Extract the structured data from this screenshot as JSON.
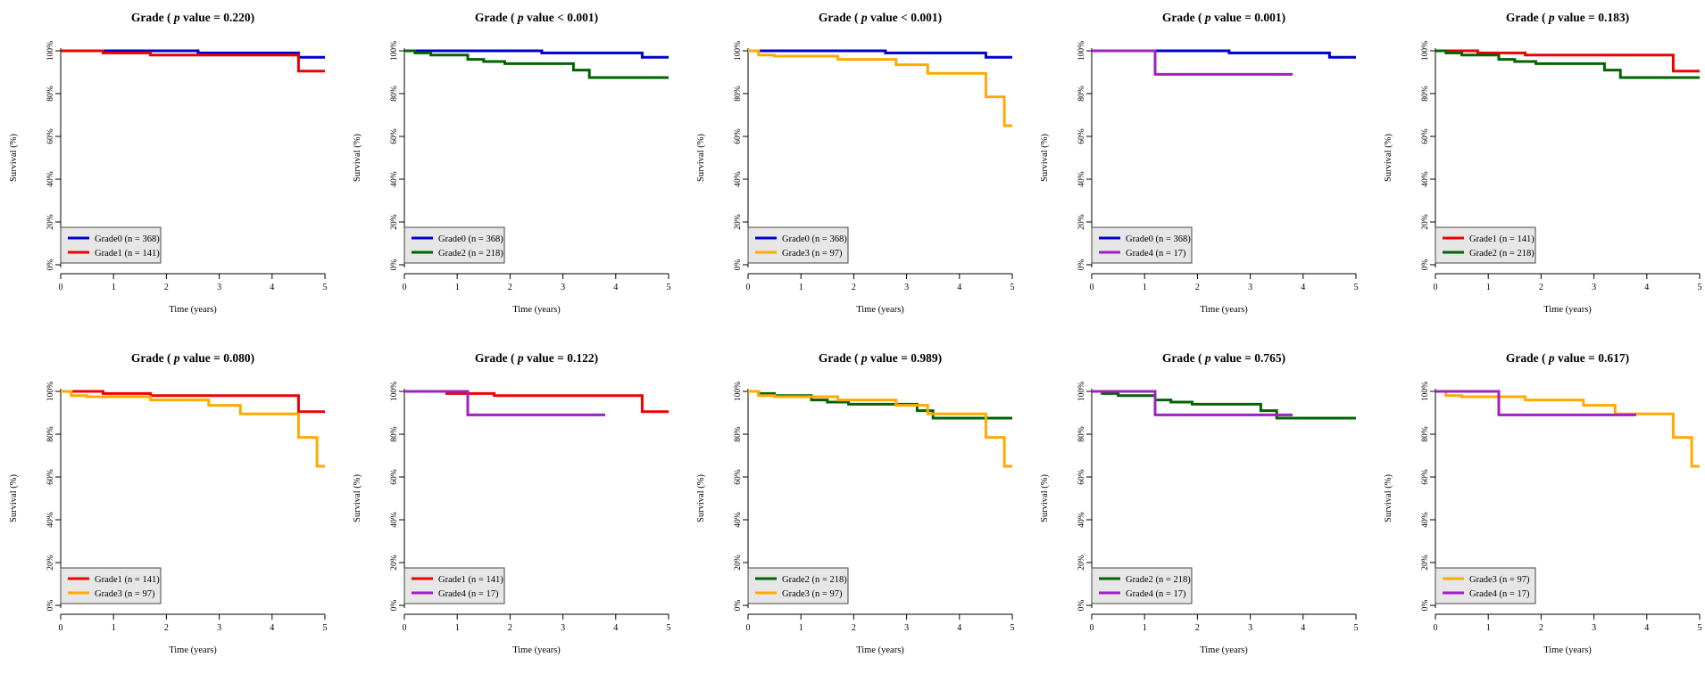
{
  "colors": {
    "Grade0": "#0000cc",
    "Grade1": "#ee0000",
    "Grade2": "#006400",
    "Grade3": "#ffaa00",
    "Grade4": "#a020c0"
  },
  "curves": {
    "Grade0": [
      [
        0,
        100
      ],
      [
        2.6,
        100
      ],
      [
        2.6,
        99
      ],
      [
        4.5,
        99
      ],
      [
        4.5,
        97
      ],
      [
        5,
        97
      ]
    ],
    "Grade1": [
      [
        0,
        100
      ],
      [
        0.8,
        100
      ],
      [
        0.8,
        99
      ],
      [
        1.7,
        99
      ],
      [
        1.7,
        98
      ],
      [
        4.5,
        98
      ],
      [
        4.5,
        90.5
      ],
      [
        5,
        90.5
      ]
    ],
    "Grade2": [
      [
        0,
        100
      ],
      [
        0.2,
        100
      ],
      [
        0.2,
        99
      ],
      [
        0.5,
        99
      ],
      [
        0.5,
        98
      ],
      [
        1.2,
        98
      ],
      [
        1.2,
        96
      ],
      [
        1.5,
        96
      ],
      [
        1.5,
        95
      ],
      [
        1.9,
        95
      ],
      [
        1.9,
        94
      ],
      [
        3.2,
        94
      ],
      [
        3.2,
        91
      ],
      [
        3.5,
        91
      ],
      [
        3.5,
        87.5
      ],
      [
        5,
        87.5
      ]
    ],
    "Grade3": [
      [
        0,
        100
      ],
      [
        0.2,
        100
      ],
      [
        0.2,
        98
      ],
      [
        0.5,
        98
      ],
      [
        0.5,
        97.5
      ],
      [
        1.7,
        97.5
      ],
      [
        1.7,
        96
      ],
      [
        2.8,
        96
      ],
      [
        2.8,
        93.5
      ],
      [
        3.4,
        93.5
      ],
      [
        3.4,
        89.5
      ],
      [
        4.5,
        89.5
      ],
      [
        4.5,
        78.5
      ],
      [
        4.85,
        78.5
      ],
      [
        4.85,
        65
      ],
      [
        5,
        65
      ]
    ],
    "Grade4": [
      [
        0,
        100
      ],
      [
        1.2,
        100
      ],
      [
        1.2,
        89
      ],
      [
        3.8,
        89
      ]
    ]
  },
  "chart_data": [
    {
      "type": "line",
      "title_prefix": "Grade ( ",
      "title_p": "p",
      "title_suffix": " value = 0.220)",
      "xlabel": "Time (years)",
      "ylabel": "Survival (%)",
      "xlim": [
        0,
        5
      ],
      "ylim": [
        0,
        100
      ],
      "xticks": [
        "0",
        "1",
        "2",
        "3",
        "4",
        "5"
      ],
      "yticks": [
        "0%",
        "20%",
        "40%",
        "60%",
        "80%",
        "100%"
      ],
      "legend_position": "bottom-left",
      "series": [
        {
          "name": "Grade0 (n = 368)",
          "group": "Grade0"
        },
        {
          "name": "Grade1 (n = 141)",
          "group": "Grade1"
        }
      ]
    },
    {
      "type": "line",
      "title_prefix": "Grade ( ",
      "title_p": "p",
      "title_suffix": " value < 0.001)",
      "xlabel": "Time (years)",
      "ylabel": "Survival (%)",
      "xlim": [
        0,
        5
      ],
      "ylim": [
        0,
        100
      ],
      "xticks": [
        "0",
        "1",
        "2",
        "3",
        "4",
        "5"
      ],
      "yticks": [
        "0%",
        "20%",
        "40%",
        "60%",
        "80%",
        "100%"
      ],
      "legend_position": "bottom-left",
      "series": [
        {
          "name": "Grade0 (n = 368)",
          "group": "Grade0"
        },
        {
          "name": "Grade2 (n = 218)",
          "group": "Grade2"
        }
      ]
    },
    {
      "type": "line",
      "title_prefix": "Grade ( ",
      "title_p": "p",
      "title_suffix": " value < 0.001)",
      "xlabel": "Time (years)",
      "ylabel": "Survival (%)",
      "xlim": [
        0,
        5
      ],
      "ylim": [
        0,
        100
      ],
      "xticks": [
        "0",
        "1",
        "2",
        "3",
        "4",
        "5"
      ],
      "yticks": [
        "0%",
        "20%",
        "40%",
        "60%",
        "80%",
        "100%"
      ],
      "legend_position": "bottom-left",
      "series": [
        {
          "name": "Grade0 (n = 368)",
          "group": "Grade0"
        },
        {
          "name": "Grade3 (n = 97)",
          "group": "Grade3"
        }
      ]
    },
    {
      "type": "line",
      "title_prefix": "Grade ( ",
      "title_p": "p",
      "title_suffix": " value = 0.001)",
      "xlabel": "Time (years)",
      "ylabel": "Survival (%)",
      "xlim": [
        0,
        5
      ],
      "ylim": [
        0,
        100
      ],
      "xticks": [
        "0",
        "1",
        "2",
        "3",
        "4",
        "5"
      ],
      "yticks": [
        "0%",
        "20%",
        "40%",
        "60%",
        "80%",
        "100%"
      ],
      "legend_position": "bottom-left",
      "series": [
        {
          "name": "Grade0 (n = 368)",
          "group": "Grade0"
        },
        {
          "name": "Grade4 (n = 17)",
          "group": "Grade4"
        }
      ]
    },
    {
      "type": "line",
      "title_prefix": "Grade ( ",
      "title_p": "p",
      "title_suffix": " value = 0.183)",
      "xlabel": "Time (years)",
      "ylabel": "Survival (%)",
      "xlim": [
        0,
        5
      ],
      "ylim": [
        0,
        100
      ],
      "xticks": [
        "0",
        "1",
        "2",
        "3",
        "4",
        "5"
      ],
      "yticks": [
        "0%",
        "20%",
        "40%",
        "60%",
        "80%",
        "100%"
      ],
      "legend_position": "bottom-left",
      "series": [
        {
          "name": "Grade1 (n = 141)",
          "group": "Grade1"
        },
        {
          "name": "Grade2 (n = 218)",
          "group": "Grade2"
        }
      ]
    },
    {
      "type": "line",
      "title_prefix": "Grade ( ",
      "title_p": "p",
      "title_suffix": " value = 0.080)",
      "xlabel": "Time (years)",
      "ylabel": "Survival (%)",
      "xlim": [
        0,
        5
      ],
      "ylim": [
        0,
        100
      ],
      "xticks": [
        "0",
        "1",
        "2",
        "3",
        "4",
        "5"
      ],
      "yticks": [
        "0%",
        "20%",
        "40%",
        "60%",
        "80%",
        "100%"
      ],
      "legend_position": "bottom-left",
      "series": [
        {
          "name": "Grade1 (n = 141)",
          "group": "Grade1"
        },
        {
          "name": "Grade3 (n = 97)",
          "group": "Grade3"
        }
      ]
    },
    {
      "type": "line",
      "title_prefix": "Grade ( ",
      "title_p": "p",
      "title_suffix": " value = 0.122)",
      "xlabel": "Time (years)",
      "ylabel": "Survival (%)",
      "xlim": [
        0,
        5
      ],
      "ylim": [
        0,
        100
      ],
      "xticks": [
        "0",
        "1",
        "2",
        "3",
        "4",
        "5"
      ],
      "yticks": [
        "0%",
        "20%",
        "40%",
        "60%",
        "80%",
        "100%"
      ],
      "legend_position": "bottom-left",
      "series": [
        {
          "name": "Grade1 (n = 141)",
          "group": "Grade1"
        },
        {
          "name": "Grade4 (n = 17)",
          "group": "Grade4"
        }
      ]
    },
    {
      "type": "line",
      "title_prefix": "Grade ( ",
      "title_p": "p",
      "title_suffix": " value = 0.989)",
      "xlabel": "Time (years)",
      "ylabel": "Survival (%)",
      "xlim": [
        0,
        5
      ],
      "ylim": [
        0,
        100
      ],
      "xticks": [
        "0",
        "1",
        "2",
        "3",
        "4",
        "5"
      ],
      "yticks": [
        "0%",
        "20%",
        "40%",
        "60%",
        "80%",
        "100%"
      ],
      "legend_position": "bottom-left",
      "series": [
        {
          "name": "Grade2 (n = 218)",
          "group": "Grade2"
        },
        {
          "name": "Grade3 (n = 97)",
          "group": "Grade3"
        }
      ]
    },
    {
      "type": "line",
      "title_prefix": "Grade ( ",
      "title_p": "p",
      "title_suffix": " value = 0.765)",
      "xlabel": "Time (years)",
      "ylabel": "Survival (%)",
      "xlim": [
        0,
        5
      ],
      "ylim": [
        0,
        100
      ],
      "xticks": [
        "0",
        "1",
        "2",
        "3",
        "4",
        "5"
      ],
      "yticks": [
        "0%",
        "20%",
        "40%",
        "60%",
        "80%",
        "100%"
      ],
      "legend_position": "bottom-left",
      "series": [
        {
          "name": "Grade2 (n = 218)",
          "group": "Grade2"
        },
        {
          "name": "Grade4 (n = 17)",
          "group": "Grade4"
        }
      ]
    },
    {
      "type": "line",
      "title_prefix": "Grade ( ",
      "title_p": "p",
      "title_suffix": " value = 0.617)",
      "xlabel": "Time (years)",
      "ylabel": "Survival (%)",
      "xlim": [
        0,
        5
      ],
      "ylim": [
        0,
        100
      ],
      "xticks": [
        "0",
        "1",
        "2",
        "3",
        "4",
        "5"
      ],
      "yticks": [
        "0%",
        "20%",
        "40%",
        "60%",
        "80%",
        "100%"
      ],
      "legend_position": "bottom-left",
      "series": [
        {
          "name": "Grade3 (n = 97)",
          "group": "Grade3"
        },
        {
          "name": "Grade4 (n = 17)",
          "group": "Grade4"
        }
      ]
    }
  ]
}
